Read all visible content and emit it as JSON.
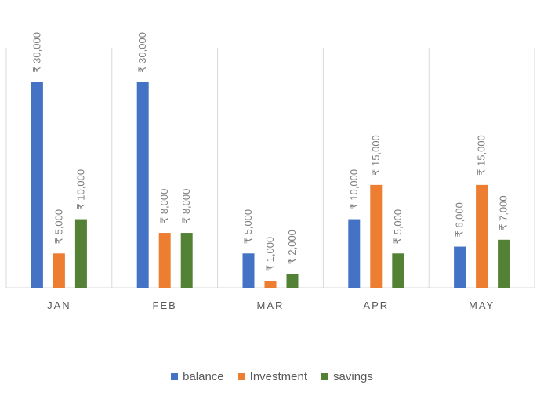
{
  "chart_data": {
    "type": "bar",
    "categories": [
      "JAN",
      "FEB",
      "MAR",
      "APR",
      "MAY"
    ],
    "series": [
      {
        "name": "balance",
        "color": "#4472c4",
        "values": [
          30000,
          30000,
          5000,
          10000,
          6000
        ]
      },
      {
        "name": "Investment",
        "color": "#ed7d31",
        "values": [
          5000,
          8000,
          1000,
          15000,
          15000
        ]
      },
      {
        "name": "savings",
        "color": "#548235",
        "values": [
          10000,
          8000,
          2000,
          5000,
          7000
        ]
      }
    ],
    "value_prefix": "₹",
    "ylim": [
      0,
      35000
    ],
    "grid": "vertical category separators",
    "legend_position": "bottom"
  }
}
